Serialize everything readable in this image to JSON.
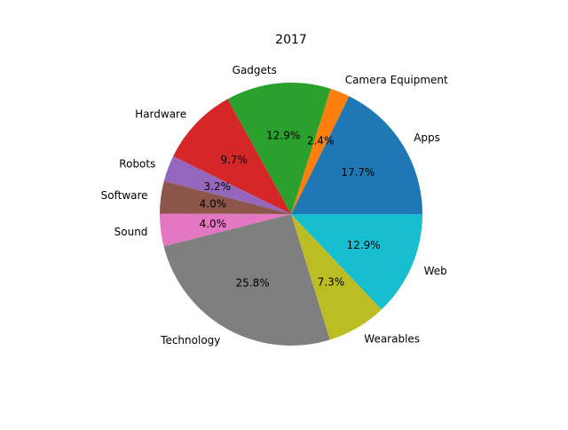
{
  "chart_data": {
    "type": "pie",
    "title": "2017",
    "categories": [
      "Apps",
      "Camera Equipment",
      "Gadgets",
      "Hardware",
      "Robots",
      "Software",
      "Sound",
      "Technology",
      "Wearables",
      "Web"
    ],
    "values": [
      17.7,
      2.4,
      12.9,
      9.7,
      3.2,
      4.0,
      4.0,
      25.8,
      7.3,
      12.9
    ],
    "value_labels": [
      "17.7%",
      "2.4%",
      "12.9%",
      "9.7%",
      "3.2%",
      "4.0%",
      "4.0%",
      "25.8%",
      "7.3%",
      "12.9%"
    ],
    "colors": [
      "#1f77b4",
      "#ff7f0e",
      "#2ca02c",
      "#d62728",
      "#9467bd",
      "#8c564b",
      "#e377c2",
      "#7f7f7f",
      "#bcbd22",
      "#17becf"
    ],
    "start_angle_deg": 0,
    "direction": "counterclockwise",
    "legend": "none"
  }
}
